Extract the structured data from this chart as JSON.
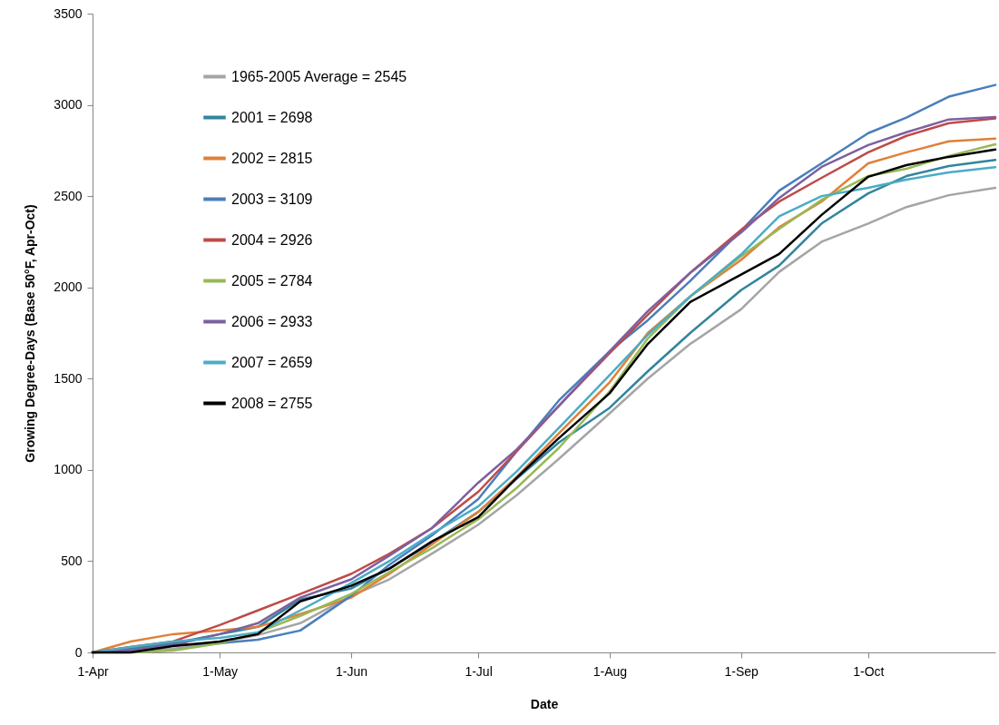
{
  "chart_data": {
    "type": "line",
    "xlabel": "Date",
    "ylabel": "Growing Degree-Days (Base 50°F, Apr-Oct)",
    "x": [
      "--04-01",
      "--04-10",
      "--04-20",
      "--05-01",
      "--05-10",
      "--05-20",
      "--06-01",
      "--06-10",
      "--06-20",
      "--07-01",
      "--07-10",
      "--07-20",
      "--08-01",
      "--08-10",
      "--08-20",
      "--09-01",
      "--09-10",
      "--09-20",
      "--10-01",
      "--10-10",
      "--10-20",
      "--10-31"
    ],
    "xlim": [
      "--04-01",
      "--10-31"
    ],
    "xticks": [
      {
        "value": "--04-01",
        "label": "1-Apr"
      },
      {
        "value": "--05-01",
        "label": "1-May"
      },
      {
        "value": "--06-01",
        "label": "1-Jun"
      },
      {
        "value": "--07-01",
        "label": "1-Jul"
      },
      {
        "value": "--08-01",
        "label": "1-Aug"
      },
      {
        "value": "--09-01",
        "label": "1-Sep"
      },
      {
        "value": "--10-01",
        "label": "1-Oct"
      }
    ],
    "ylim": [
      0,
      3500
    ],
    "yticks": [
      0,
      500,
      1000,
      1500,
      2000,
      2500,
      3000,
      3500
    ],
    "grid": false,
    "legend": "top left",
    "marker": "none",
    "line_style": "solid",
    "series": [
      {
        "name": "1965-2005 Average = 2545",
        "color": "#a5a5a5",
        "values": [
          0,
          5,
          20,
          55,
          95,
          160,
          310,
          400,
          540,
          700,
          860,
          1060,
          1310,
          1500,
          1690,
          1880,
          2085,
          2250,
          2350,
          2440,
          2505,
          2545
        ]
      },
      {
        "name": "2001 = 2698",
        "color": "#31859c",
        "values": [
          0,
          20,
          50,
          100,
          140,
          290,
          350,
          460,
          600,
          770,
          950,
          1150,
          1340,
          1540,
          1750,
          1985,
          2120,
          2350,
          2515,
          2610,
          2665,
          2698
        ]
      },
      {
        "name": "2002 = 2815",
        "color": "#e0803a",
        "values": [
          0,
          60,
          100,
          120,
          140,
          210,
          300,
          430,
          590,
          770,
          960,
          1200,
          1480,
          1750,
          1950,
          2150,
          2330,
          2470,
          2680,
          2740,
          2800,
          2815
        ]
      },
      {
        "name": "2003 = 3109",
        "color": "#4a7ebb",
        "values": [
          0,
          10,
          40,
          50,
          70,
          120,
          310,
          480,
          640,
          840,
          1100,
          1380,
          1650,
          1820,
          2035,
          2310,
          2530,
          2680,
          2845,
          2930,
          3045,
          3109
        ]
      },
      {
        "name": "2004 = 2926",
        "color": "#be4b48",
        "values": [
          0,
          30,
          60,
          150,
          230,
          320,
          430,
          540,
          680,
          880,
          1100,
          1350,
          1640,
          1850,
          2080,
          2315,
          2470,
          2600,
          2740,
          2830,
          2900,
          2926
        ]
      },
      {
        "name": "2005 = 2784",
        "color": "#98b954",
        "values": [
          0,
          0,
          10,
          50,
          110,
          200,
          320,
          440,
          570,
          730,
          900,
          1120,
          1430,
          1720,
          1950,
          2170,
          2320,
          2480,
          2610,
          2650,
          2720,
          2784
        ]
      },
      {
        "name": "2006 = 2933",
        "color": "#7d60a0",
        "values": [
          0,
          10,
          40,
          100,
          160,
          300,
          400,
          530,
          680,
          930,
          1110,
          1350,
          1650,
          1870,
          2080,
          2300,
          2490,
          2660,
          2780,
          2850,
          2920,
          2933
        ]
      },
      {
        "name": "2007 = 2659",
        "color": "#4bacc6",
        "values": [
          0,
          30,
          60,
          80,
          110,
          230,
          380,
          500,
          650,
          800,
          990,
          1230,
          1520,
          1740,
          1950,
          2180,
          2390,
          2500,
          2545,
          2590,
          2630,
          2659
        ]
      },
      {
        "name": "2008 = 2755",
        "color": "#000000",
        "values": [
          0,
          0,
          35,
          60,
          100,
          280,
          365,
          458,
          607,
          741,
          955,
          1174,
          1420,
          1690,
          1920,
          2070,
          2183,
          2397,
          2606,
          2670,
          2715,
          2755
        ]
      }
    ]
  }
}
